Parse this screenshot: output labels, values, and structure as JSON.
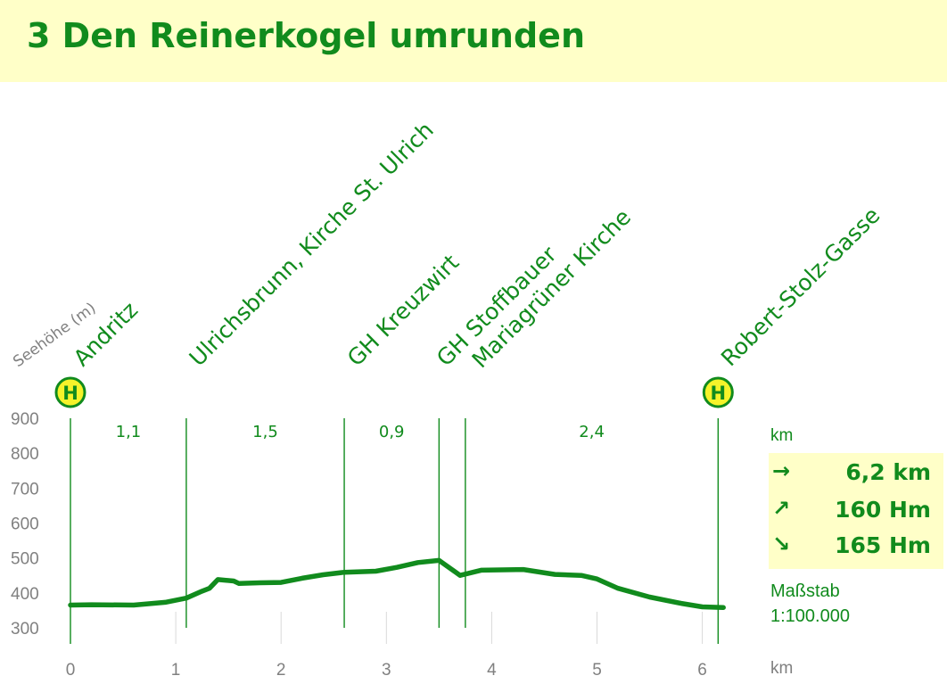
{
  "page": {
    "title": "3 Den Reinerkogel umrunden",
    "y_axis_caption": "Seehöhe (m)",
    "x_axis_unit": "km",
    "segment_unit": "km"
  },
  "stats": {
    "distance": {
      "icon": "→",
      "value": "6,2 km"
    },
    "ascent": {
      "icon": "↗",
      "value": "160 Hm"
    },
    "descent": {
      "icon": "↘",
      "value": "165 Hm"
    }
  },
  "scale": {
    "label": "Maßstab",
    "value": "1:100.000"
  },
  "colors": {
    "accent": "#118b1d",
    "header_bg": "#ffffc8",
    "axis_text": "#808080",
    "grid": "#d9d9d9"
  },
  "chart_data": {
    "type": "line",
    "title": "3 Den Reinerkogel umrunden",
    "xlabel": "km",
    "ylabel": "Seehöhe (m)",
    "xlim": [
      0,
      6.5
    ],
    "ylim": [
      300,
      900
    ],
    "x_ticks": [
      0,
      1,
      2,
      3,
      4,
      5,
      6
    ],
    "x_tick_labels": [
      "0",
      "1",
      "2",
      "3",
      "4",
      "5",
      "6"
    ],
    "y_ticks": [
      300,
      400,
      500,
      600,
      700,
      800,
      900
    ],
    "y_tick_labels": [
      "300",
      "400",
      "500",
      "600",
      "700",
      "800",
      "900"
    ],
    "grid": false,
    "series": [
      {
        "x": [
          0,
          0.2,
          0.6,
          0.9,
          1.1,
          1.25,
          1.32,
          1.4,
          1.55,
          1.6,
          1.8,
          2.0,
          2.2,
          2.4,
          2.6,
          2.9,
          3.1,
          3.3,
          3.5,
          3.7,
          3.9,
          4.1,
          4.3,
          4.6,
          4.85,
          5.0,
          5.2,
          5.5,
          5.8,
          6.0,
          6.2
        ],
        "y": [
          365,
          366,
          365,
          373,
          385,
          405,
          413,
          438,
          434,
          427,
          429,
          430,
          442,
          452,
          459,
          462,
          473,
          487,
          493,
          450,
          465,
          466,
          467,
          453,
          450,
          440,
          413,
          388,
          370,
          360,
          358
        ]
      }
    ],
    "waypoints": [
      {
        "name": "Andritz",
        "km": 0,
        "bus_stop": true,
        "bus_label": "H"
      },
      {
        "name": "Ulrichsbrunn, Kirche St. Ulrich",
        "km": 1.1,
        "bus_stop": false
      },
      {
        "name": "GH Kreuzwirt",
        "km": 2.6,
        "bus_stop": false
      },
      {
        "name": "GH Stoffbauer",
        "km": 3.5,
        "bus_stop": false
      },
      {
        "name": "Mariagrüner Kirche",
        "km": 3.75,
        "bus_stop": false
      },
      {
        "name": "Robert-Stolz-Gasse",
        "km": 6.15,
        "bus_stop": true,
        "bus_label": "H"
      }
    ],
    "segments": [
      {
        "label": "1,1",
        "from_km": 0,
        "to_km": 1.1
      },
      {
        "label": "1,5",
        "from_km": 1.1,
        "to_km": 2.6
      },
      {
        "label": "0,9",
        "from_km": 2.6,
        "to_km": 3.5
      },
      {
        "label": "2,4",
        "from_km": 3.75,
        "to_km": 6.15
      }
    ]
  }
}
